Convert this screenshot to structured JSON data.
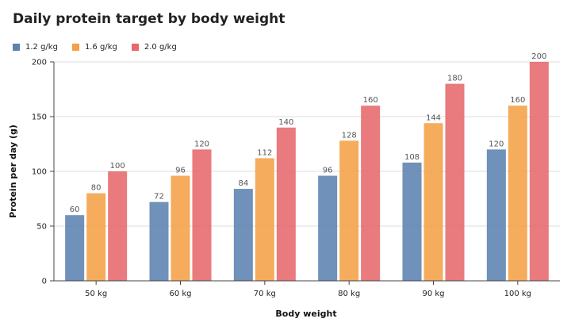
{
  "chart_data": {
    "type": "bar",
    "title": "Daily protein target by body weight",
    "xlabel": "Body weight",
    "ylabel": "Protein per day (g)",
    "categories": [
      "50 kg",
      "60 kg",
      "70 kg",
      "80 kg",
      "90 kg",
      "100 kg"
    ],
    "series": [
      {
        "name": "1.2 g/kg",
        "color": "#5b82b0",
        "values": [
          60,
          72,
          84,
          96,
          108,
          120
        ]
      },
      {
        "name": "1.6 g/kg",
        "color": "#f4a046",
        "values": [
          80,
          96,
          112,
          128,
          144,
          160
        ]
      },
      {
        "name": "2.0 g/kg",
        "color": "#e6686b",
        "values": [
          100,
          120,
          140,
          160,
          180,
          200
        ]
      }
    ],
    "ylim": [
      0,
      200
    ],
    "yticks": [
      0,
      50,
      100,
      150,
      200
    ],
    "grid": true,
    "legend": "top-left"
  }
}
